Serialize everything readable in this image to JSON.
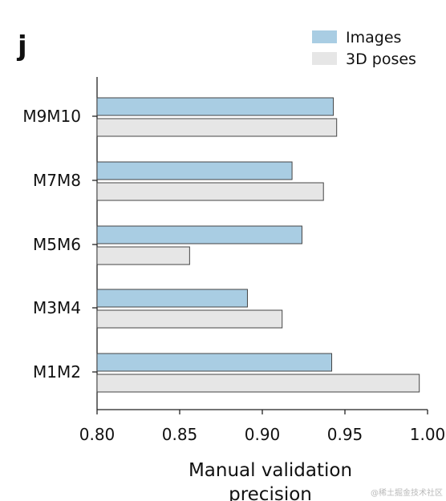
{
  "panel_label": "j",
  "watermark": "@稀土掘金技术社区",
  "chart_data": {
    "type": "bar",
    "orientation": "horizontal",
    "categories": [
      "M9M10",
      "M7M8",
      "M5M6",
      "M3M4",
      "M1M2"
    ],
    "series": [
      {
        "name": "Images",
        "color": "#a9cde3",
        "values": [
          0.943,
          0.918,
          0.924,
          0.891,
          0.942
        ]
      },
      {
        "name": "3D poses",
        "color": "#e6e6e6",
        "values": [
          0.945,
          0.937,
          0.856,
          0.912,
          0.995
        ]
      }
    ],
    "xlabel_line1": "Manual validation",
    "xlabel_line2": "precision",
    "xlim": [
      0.8,
      1.0
    ],
    "xticks": [
      "0.80",
      "0.85",
      "0.90",
      "0.95",
      "1.00"
    ],
    "legend_position": "top-right",
    "grid": false
  }
}
